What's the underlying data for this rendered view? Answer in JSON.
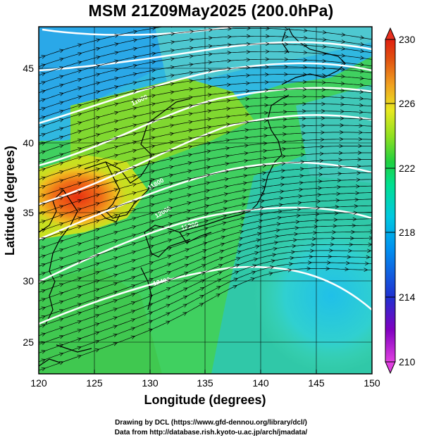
{
  "title": "MSM 21Z09May2025 (200.0hPa)",
  "x_axis": {
    "label": "Longitude (degrees)",
    "range": [
      120,
      150
    ],
    "ticks": [
      120,
      125,
      130,
      135,
      140,
      145,
      150
    ]
  },
  "y_axis": {
    "label": "Latitude  (degrees)",
    "range": [
      22.5,
      47.5
    ],
    "ticks": [
      25,
      30,
      35,
      40,
      45
    ]
  },
  "colorbar": {
    "range": [
      210,
      230
    ],
    "ticks": [
      210,
      214,
      218,
      222,
      226,
      230
    ],
    "extend": "both",
    "colors": [
      "#e040e0",
      "#8000c0",
      "#2030d0",
      "#0090f0",
      "#00c8e0",
      "#00e090",
      "#20d040",
      "#90e020",
      "#e8e820",
      "#f0a020",
      "#e05010",
      "#e02010"
    ]
  },
  "contour_labels": [
    "11600",
    "11800",
    "12000",
    "12200",
    "12400"
  ],
  "credits": [
    "Drawing by DCL (https://www.gfd-dennou.org/library/dcl/)",
    "Data from http://database.rish.kyoto-u.ac.jp/arch/jmadata/"
  ]
}
